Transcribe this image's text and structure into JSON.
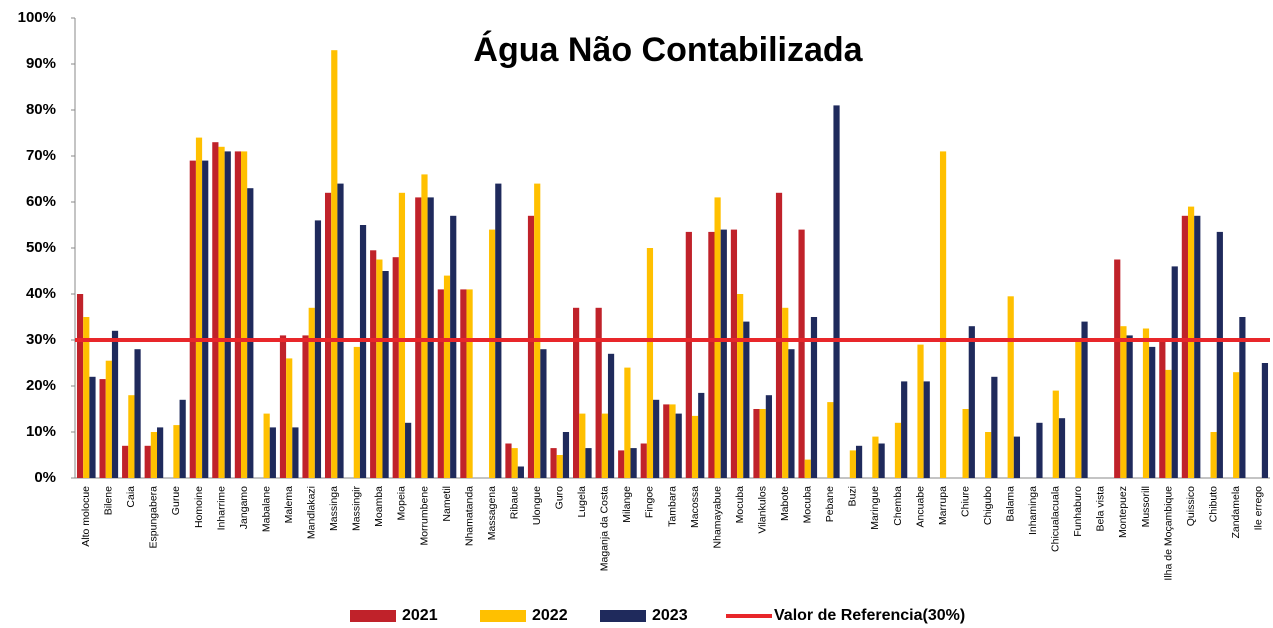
{
  "chart_data": {
    "type": "bar",
    "title": "Água Não Contabilizada",
    "categories": [
      "Alto molocue",
      "Bilene",
      "Caia",
      "Espungabera",
      "Gurue",
      "Homoine",
      "Inharrime",
      "Jangamo",
      "Mabalane",
      "Malema",
      "Mandlakazi",
      "Massinga",
      "Massingir",
      "Moamba",
      "Mopeia",
      "Morrumbene",
      "Nametil",
      "Nhamatanda",
      "Massagena",
      "Ribaue",
      "Ulongue",
      "Guro",
      "Lugela",
      "Maganja da Costa",
      "Milange",
      "Fingoe",
      "Tambara",
      "Macossa",
      "Nhamayabue",
      "Mocuba",
      "Vilankulos",
      "Mabote",
      "Mocuba",
      "Pebane",
      "Buzi",
      "Maringue",
      "Chemba",
      "Ancuabe",
      "Marrupa",
      "Chiure",
      "Chigubo",
      "Balama",
      "Inhaminga",
      "Chicualacuala",
      "Funhaburo",
      "Bela vista",
      "Montepuez",
      "Mussorill",
      "Ilha de Moçambique",
      "Quissico",
      "Chibuto",
      "Zandamela",
      "Ile errego"
    ],
    "series": [
      {
        "name": "2021",
        "color": "#c0222a",
        "values": [
          40,
          21.5,
          7,
          7,
          null,
          69,
          73,
          71,
          null,
          31,
          31,
          62,
          null,
          49.5,
          48,
          61,
          41,
          41,
          null,
          7.5,
          57,
          6.5,
          37,
          37,
          6,
          7.5,
          16,
          53.5,
          53.5,
          54,
          15,
          62,
          54,
          null,
          null,
          null,
          null,
          null,
          null,
          null,
          null,
          null,
          null,
          null,
          null,
          null,
          47.5,
          null,
          30,
          57,
          null,
          null,
          null
        ]
      },
      {
        "name": "2022",
        "color": "#ffc000",
        "values": [
          35,
          25.5,
          18,
          10,
          11.5,
          74,
          72,
          71,
          14,
          26,
          37,
          93,
          28.5,
          47.5,
          62,
          66,
          44,
          41,
          54,
          6.5,
          64,
          5,
          14,
          14,
          24,
          50,
          16,
          13.5,
          61,
          40,
          15,
          37,
          4,
          16.5,
          6,
          9,
          12,
          29,
          71,
          15,
          10,
          39.5,
          null,
          19,
          30,
          null,
          33,
          32.5,
          23.5,
          59,
          10,
          23,
          null
        ]
      },
      {
        "name": "2023",
        "color": "#1f2a5c",
        "values": [
          22,
          32,
          28,
          11,
          17,
          69,
          71,
          63,
          11,
          11,
          56,
          64,
          55,
          45,
          12,
          61,
          57,
          null,
          64,
          2.5,
          28,
          10,
          6.5,
          27,
          6.5,
          17,
          14,
          18.5,
          54,
          34,
          18,
          28,
          35,
          81,
          7,
          7.5,
          21,
          21,
          null,
          33,
          22,
          9,
          12,
          13,
          34,
          null,
          31,
          28.5,
          46,
          57,
          53.5,
          35,
          25
        ]
      }
    ],
    "reference": {
      "name": "Valor de Referencia(30%)",
      "value": 30,
      "color": "#e8262a"
    },
    "ylim": [
      0,
      100
    ],
    "yticks": [
      {
        "value": 0,
        "label": "0%"
      },
      {
        "value": 10,
        "label": "10%"
      },
      {
        "value": 20,
        "label": "20%"
      },
      {
        "value": 30,
        "label": "30%"
      },
      {
        "value": 40,
        "label": "40%"
      },
      {
        "value": 50,
        "label": "50%"
      },
      {
        "value": 60,
        "label": "60%"
      },
      {
        "value": 70,
        "label": "70%"
      },
      {
        "value": 80,
        "label": "80%"
      },
      {
        "value": 90,
        "label": "90%"
      },
      {
        "value": 100,
        "label": "100%"
      }
    ],
    "legend": "bottom"
  }
}
